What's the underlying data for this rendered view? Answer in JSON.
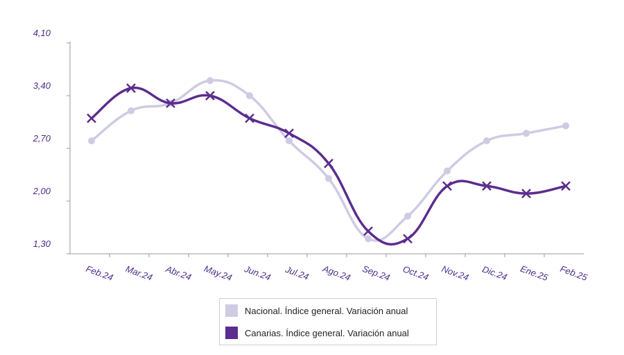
{
  "chart_data": {
    "type": "line",
    "categories": [
      "Feb.24",
      "Mar.24",
      "Abr.24",
      "May.24",
      "Jun.24",
      "Jul.24",
      "Ago.24",
      "Sep.24",
      "Oct.24",
      "Nov.24",
      "Dic.24",
      "Ene.25",
      "Feb.25"
    ],
    "ytick_labels": [
      "1,30",
      "2,00",
      "2,70",
      "3,40",
      "4,10"
    ],
    "ytick_values": [
      1.3,
      2.0,
      2.7,
      3.4,
      4.1
    ],
    "ylim": [
      1.3,
      4.1
    ],
    "grid": false,
    "legend_position": "bottom-center",
    "series": [
      {
        "name": "Nacional. Índice general. Variación anual",
        "color": "#cfcbe3",
        "marker": "circle",
        "values": [
          2.8,
          3.2,
          3.3,
          3.6,
          3.4,
          2.8,
          2.3,
          1.5,
          1.8,
          2.4,
          2.8,
          2.9,
          3.0
        ]
      },
      {
        "name": "Canarias. Índice general. Variación anual",
        "color": "#5b2d8e",
        "marker": "cross",
        "values": [
          3.1,
          3.5,
          3.3,
          3.4,
          3.1,
          2.9,
          2.5,
          1.6,
          1.5,
          2.2,
          2.2,
          2.1,
          2.2
        ]
      }
    ]
  }
}
